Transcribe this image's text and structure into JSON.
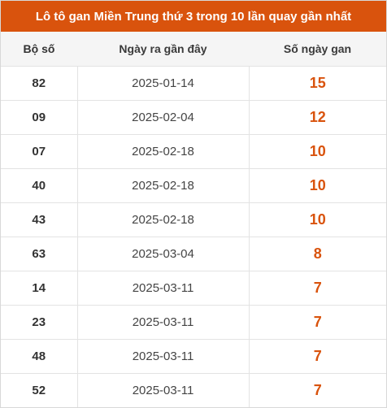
{
  "title": "Lô tô gan Miền Trung thứ 3 trong 10 lần quay gần nhất",
  "colors": {
    "accent": "#d9530d",
    "header_bg": "#f5f5f5"
  },
  "columns": [
    "Bộ số",
    "Ngày ra gần đây",
    "Số ngày gan"
  ],
  "rows": [
    {
      "number": "82",
      "date": "2025-01-14",
      "days": "15"
    },
    {
      "number": "09",
      "date": "2025-02-04",
      "days": "12"
    },
    {
      "number": "07",
      "date": "2025-02-18",
      "days": "10"
    },
    {
      "number": "40",
      "date": "2025-02-18",
      "days": "10"
    },
    {
      "number": "43",
      "date": "2025-02-18",
      "days": "10"
    },
    {
      "number": "63",
      "date": "2025-03-04",
      "days": "8"
    },
    {
      "number": "14",
      "date": "2025-03-11",
      "days": "7"
    },
    {
      "number": "23",
      "date": "2025-03-11",
      "days": "7"
    },
    {
      "number": "48",
      "date": "2025-03-11",
      "days": "7"
    },
    {
      "number": "52",
      "date": "2025-03-11",
      "days": "7"
    }
  ]
}
